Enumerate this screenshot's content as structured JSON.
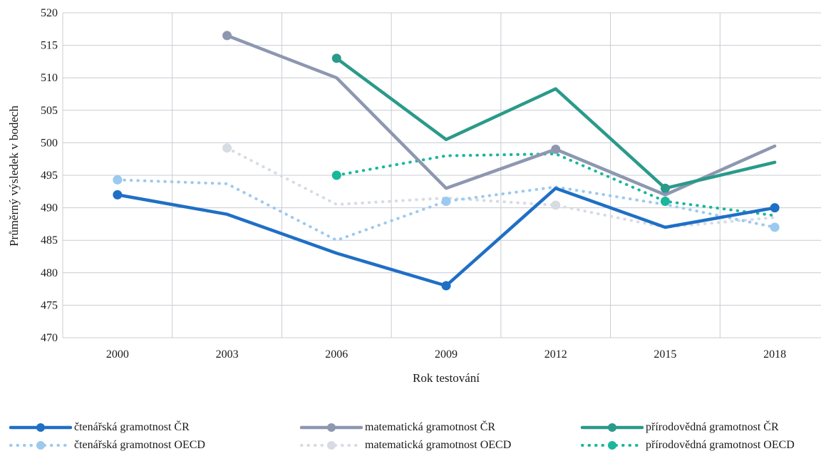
{
  "chart_data": {
    "type": "line",
    "xlabel": "Rok testování",
    "ylabel": "Průměrný výsledek v bodech",
    "categories": [
      "2000",
      "2003",
      "2006",
      "2009",
      "2012",
      "2015",
      "2018"
    ],
    "ylim": [
      470,
      520
    ],
    "yticks": [
      "470",
      "475",
      "480",
      "485",
      "490",
      "495",
      "500",
      "505",
      "510",
      "515",
      "520"
    ],
    "grid": true,
    "legend_position": "bottom",
    "series": [
      {
        "name": "čtenářská gramotnost ČR",
        "values": [
          492,
          489,
          483,
          478,
          493,
          487,
          490
        ],
        "color": "#1f6fc5",
        "dash": "solid",
        "markers": [
          0,
          3,
          6
        ]
      },
      {
        "name": "matematická gramotnost ČR",
        "values": [
          null,
          516.5,
          510,
          493,
          499,
          492,
          499.5
        ],
        "color": "#8d97b0",
        "dash": "solid",
        "markers": [
          1,
          4
        ]
      },
      {
        "name": "přírodovědná gramotnost ČR",
        "values": [
          null,
          null,
          513,
          500.5,
          508.3,
          493,
          497
        ],
        "color": "#2a9a8a",
        "dash": "solid",
        "markers": [
          2,
          5
        ]
      },
      {
        "name": "čtenářská gramotnost OECD",
        "values": [
          494.3,
          493.7,
          485,
          491,
          493.2,
          490.5,
          487
        ],
        "color": "#9cc9ef",
        "dash": "dotted",
        "markers": [
          0,
          3,
          6
        ]
      },
      {
        "name": "matematická gramotnost OECD",
        "values": [
          null,
          499.2,
          490.5,
          491.5,
          490.4,
          487,
          488.5
        ],
        "color": "#d6dbe4",
        "dash": "dotted",
        "markers": [
          1,
          4
        ]
      },
      {
        "name": "přírodovědná gramotnost OECD",
        "values": [
          null,
          null,
          495,
          498,
          498.3,
          491,
          488.8
        ],
        "color": "#1ab79a",
        "dash": "dotted",
        "markers": [
          2,
          5
        ]
      }
    ]
  }
}
